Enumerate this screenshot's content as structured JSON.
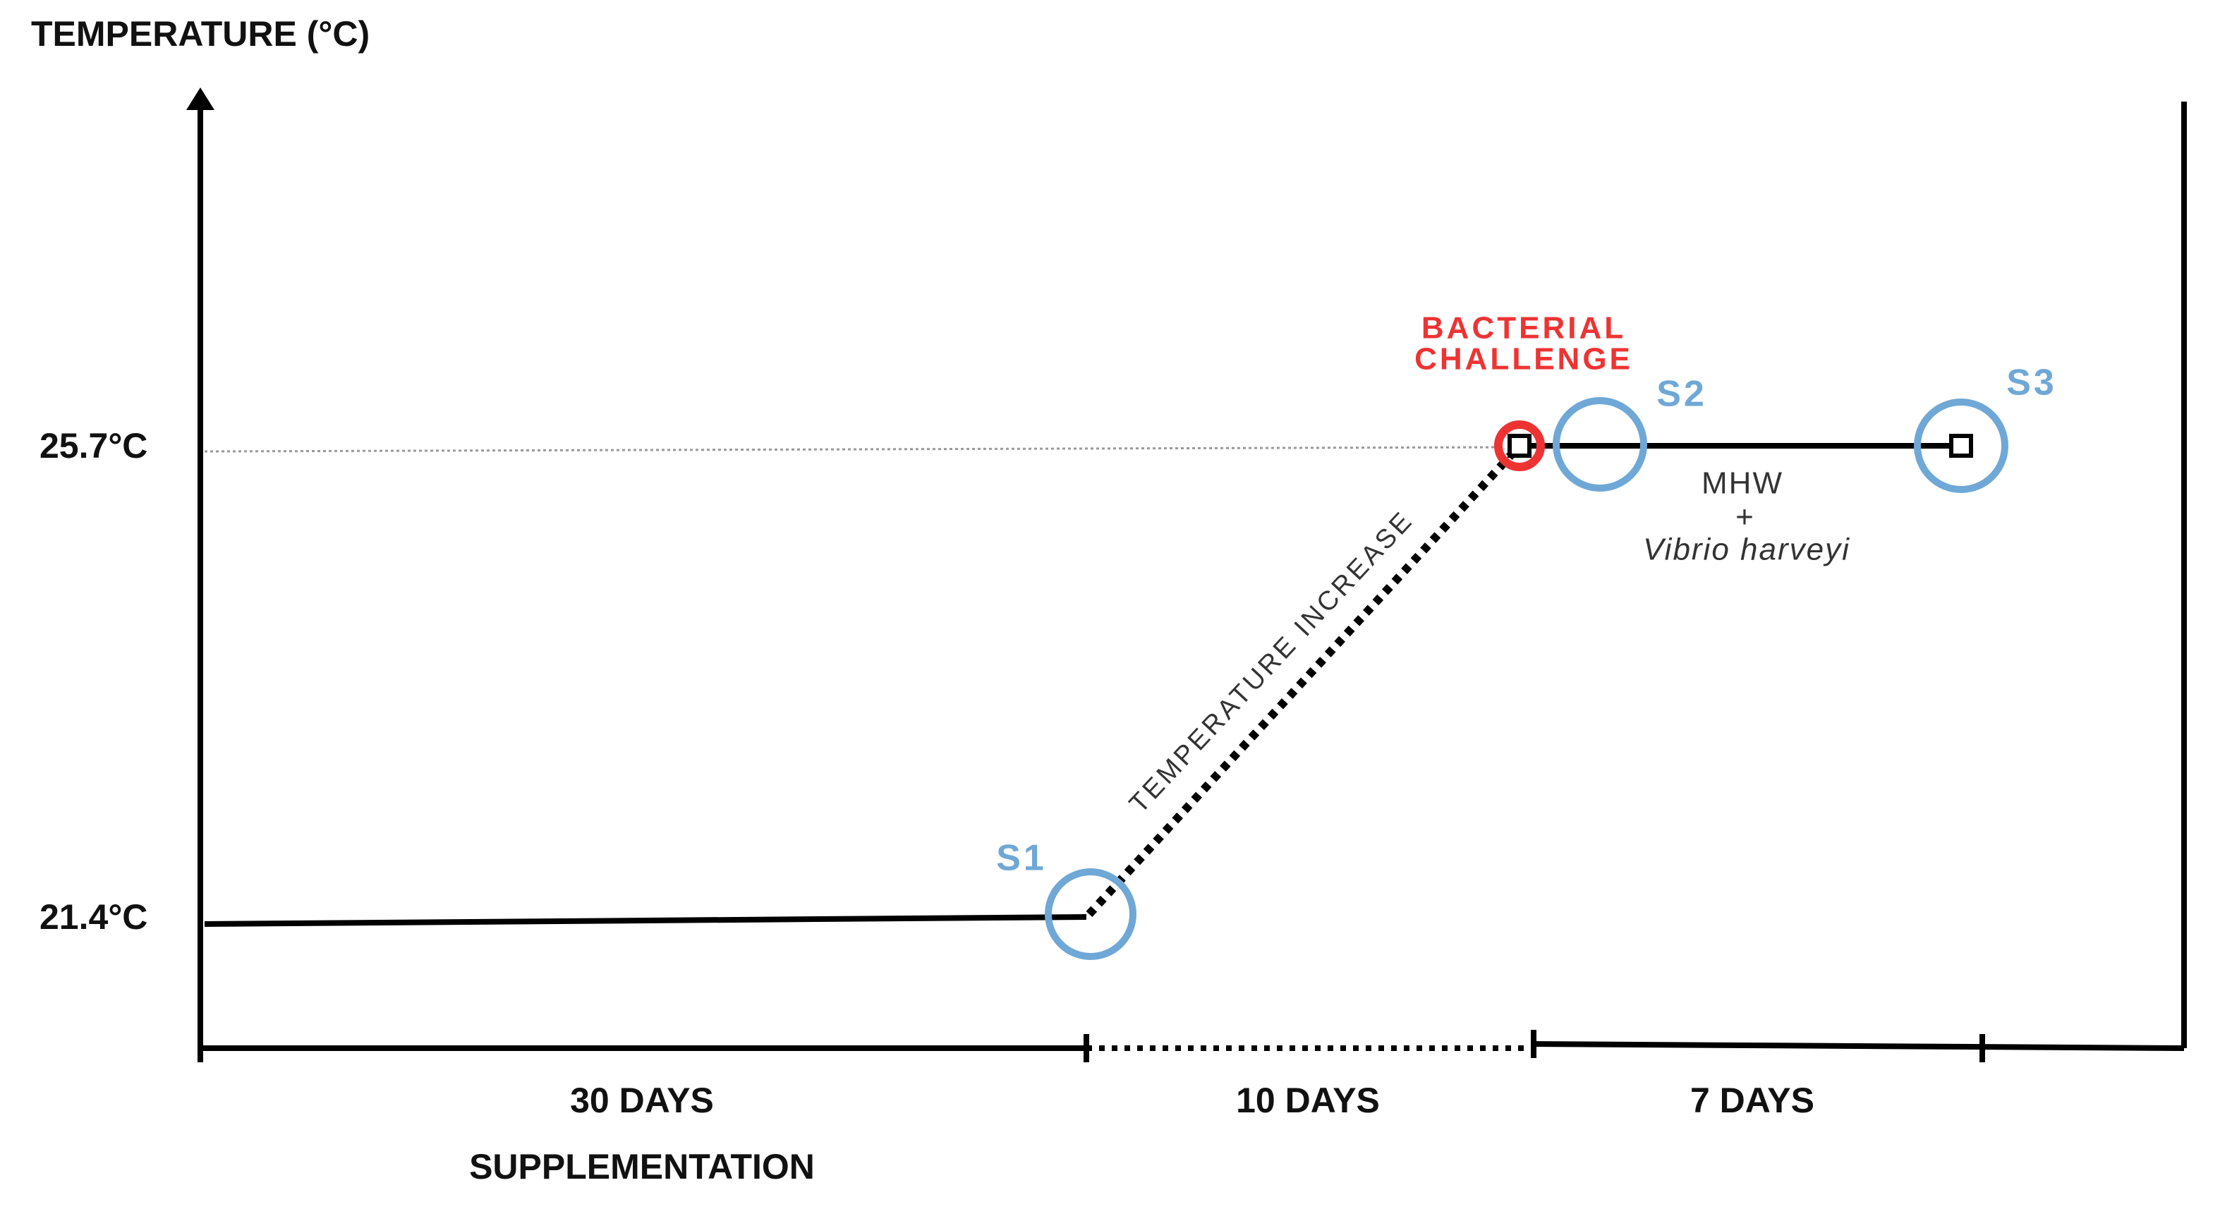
{
  "axis": {
    "y_label": "TEMPERATURE (°C)",
    "y_ticks": [
      "25.7°C",
      "21.4°C"
    ]
  },
  "periods": [
    {
      "label": "30 DAYS",
      "sublabel": "SUPPLEMENTATION"
    },
    {
      "label": "10 DAYS"
    },
    {
      "label": "7 DAYS"
    }
  ],
  "annotations": {
    "ramp": "TEMPERATURE INCREASE",
    "event": [
      "BACTERIAL",
      "CHALLENGE"
    ],
    "condition": [
      "MHW",
      "+",
      "Vibrio harveyi"
    ]
  },
  "samples": [
    "S1",
    "S2",
    "S3"
  ]
}
